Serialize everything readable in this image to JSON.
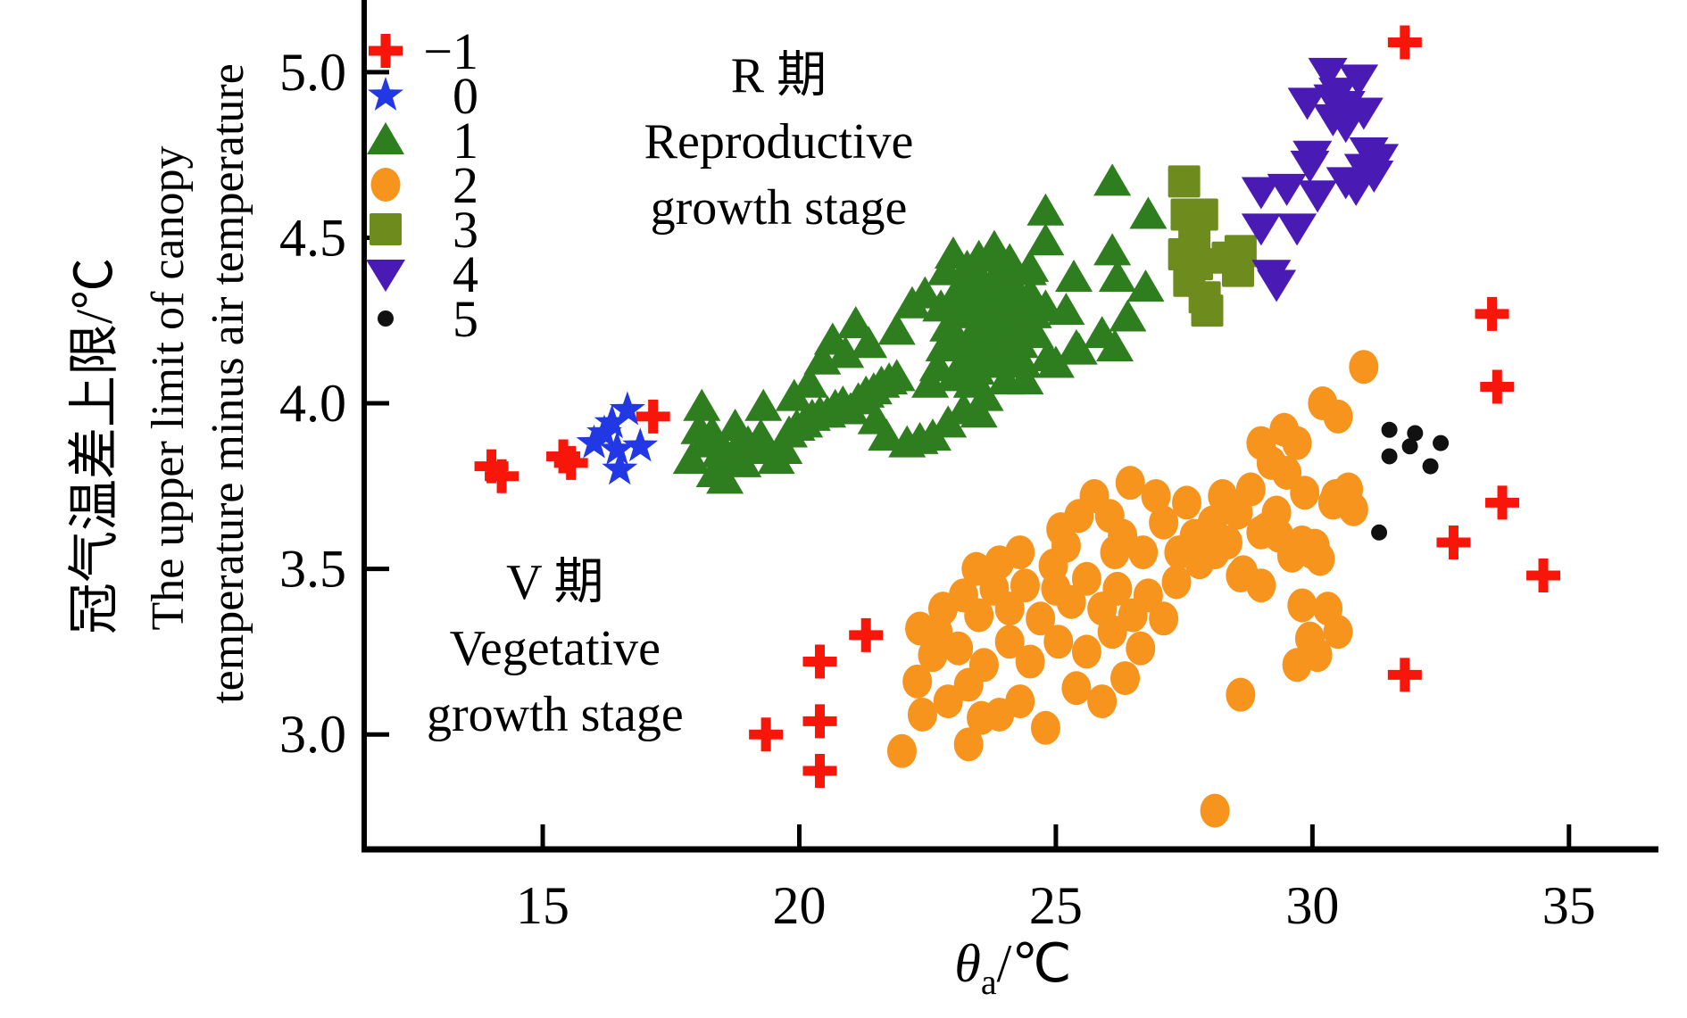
{
  "figure": {
    "background": "#ffffff",
    "text_color": "#000000"
  },
  "chart_data": {
    "type": "scatter",
    "title": "",
    "xlabel": {
      "symbol": "θ",
      "subscript": "a",
      "unit": "/℃"
    },
    "ylabel_lines": [
      "冠气温差上限/℃",
      "The upper limit of canopy",
      "temperature minus air temperature"
    ],
    "xlim": [
      11.52,
      37.3
    ],
    "ylim": [
      2.653,
      5.218
    ],
    "xticks": [
      15,
      20,
      25,
      30,
      35
    ],
    "xtick_labels": [
      "15",
      "20",
      "25",
      "30",
      "35"
    ],
    "yticks": [
      3.0,
      3.5,
      4.0,
      4.5,
      5.0
    ],
    "ytick_labels": [
      "3.0",
      "3.5",
      "4.0",
      "4.5",
      "5.0"
    ],
    "grid": false,
    "legend_position": "upper-left-inside",
    "annotations": [
      {
        "name": "reproductive-stage-label",
        "lines": [
          "R 期",
          "Reproductive",
          "growth stage"
        ],
        "x": 19.6,
        "y": 4.94
      },
      {
        "name": "vegetative-stage-label",
        "lines": [
          "V 期",
          "Vegetative",
          "growth stage"
        ],
        "x": 15.24,
        "y": 3.41
      }
    ],
    "series": [
      {
        "label": "−1",
        "marker": "plus",
        "color": "#f8160b",
        "points": [
          [
            14.0,
            3.81
          ],
          [
            14.2,
            3.78
          ],
          [
            15.4,
            3.84
          ],
          [
            15.55,
            3.82
          ],
          [
            17.15,
            3.96
          ],
          [
            19.35,
            3.0
          ],
          [
            20.4,
            3.22
          ],
          [
            20.4,
            3.04
          ],
          [
            20.4,
            2.89
          ],
          [
            21.3,
            3.3
          ],
          [
            31.8,
            5.09
          ],
          [
            33.5,
            4.27
          ],
          [
            33.6,
            4.05
          ],
          [
            33.7,
            3.7
          ],
          [
            32.75,
            3.58
          ],
          [
            34.5,
            3.48
          ],
          [
            31.8,
            3.18
          ]
        ]
      },
      {
        "label": "0",
        "marker": "star",
        "color": "#2238e4",
        "points": [
          [
            16.0,
            3.88
          ],
          [
            16.2,
            3.91
          ],
          [
            16.35,
            3.94
          ],
          [
            16.65,
            3.98
          ],
          [
            16.45,
            3.86
          ],
          [
            16.5,
            3.8
          ],
          [
            16.9,
            3.87
          ]
        ]
      },
      {
        "label": "1",
        "marker": "triangle",
        "color": "#2e7d1e",
        "points": [
          [
            17.9,
            3.83
          ],
          [
            18.05,
            3.92
          ],
          [
            18.1,
            3.99
          ],
          [
            18.15,
            3.88
          ],
          [
            18.3,
            3.91
          ],
          [
            18.35,
            3.79
          ],
          [
            18.45,
            3.85
          ],
          [
            18.55,
            3.77
          ],
          [
            18.6,
            3.84
          ],
          [
            18.75,
            3.93
          ],
          [
            18.8,
            3.87
          ],
          [
            18.9,
            3.82
          ],
          [
            19.0,
            3.88
          ],
          [
            19.15,
            3.86
          ],
          [
            19.3,
            3.99
          ],
          [
            19.25,
            3.9
          ],
          [
            19.4,
            3.86
          ],
          [
            19.55,
            3.83
          ],
          [
            19.7,
            3.86
          ],
          [
            19.8,
            3.91
          ],
          [
            19.95,
            3.93
          ],
          [
            20.1,
            3.94
          ],
          [
            20.25,
            3.96
          ],
          [
            20.4,
            3.97
          ],
          [
            20.55,
            3.97
          ],
          [
            20.7,
            3.99
          ],
          [
            20.85,
            4.0
          ],
          [
            21.0,
            3.98
          ],
          [
            21.15,
            4.01
          ],
          [
            21.3,
            4.03
          ],
          [
            21.45,
            4.04
          ],
          [
            21.6,
            4.06
          ],
          [
            21.75,
            4.07
          ],
          [
            21.9,
            4.08
          ],
          [
            21.7,
            3.9
          ],
          [
            22.1,
            3.88
          ],
          [
            22.35,
            3.89
          ],
          [
            22.6,
            3.9
          ],
          [
            20.45,
            4.13
          ],
          [
            20.65,
            4.19
          ],
          [
            21.1,
            4.24
          ],
          [
            20.9,
            4.15
          ],
          [
            21.35,
            4.18
          ],
          [
            21.9,
            4.22
          ],
          [
            22.2,
            4.3
          ],
          [
            22.45,
            4.33
          ],
          [
            22.55,
            4.06
          ],
          [
            22.7,
            4.11
          ],
          [
            22.82,
            4.17
          ],
          [
            22.9,
            4.23
          ],
          [
            22.76,
            4.29
          ],
          [
            22.86,
            4.4
          ],
          [
            23.0,
            4.45
          ],
          [
            23.05,
            4.33
          ],
          [
            23.12,
            4.27
          ],
          [
            23.1,
            4.19
          ],
          [
            23.2,
            4.13
          ],
          [
            23.27,
            4.41
          ],
          [
            23.3,
            4.35
          ],
          [
            23.33,
            4.28
          ],
          [
            23.42,
            4.22
          ],
          [
            23.44,
            4.15
          ],
          [
            23.5,
            4.44
          ],
          [
            23.56,
            4.37
          ],
          [
            23.6,
            4.31
          ],
          [
            23.66,
            4.25
          ],
          [
            23.7,
            4.19
          ],
          [
            23.76,
            4.13
          ],
          [
            23.82,
            4.46
          ],
          [
            23.86,
            4.39
          ],
          [
            23.9,
            4.32
          ],
          [
            23.96,
            4.26
          ],
          [
            24.0,
            4.2
          ],
          [
            24.06,
            4.14
          ],
          [
            24.1,
            4.43
          ],
          [
            24.16,
            4.36
          ],
          [
            24.2,
            4.3
          ],
          [
            24.26,
            4.24
          ],
          [
            24.3,
            4.18
          ],
          [
            24.36,
            4.12
          ],
          [
            24.46,
            4.4
          ],
          [
            24.5,
            4.33
          ],
          [
            24.56,
            4.27
          ],
          [
            24.6,
            4.21
          ],
          [
            23.02,
            4.08
          ],
          [
            23.36,
            4.06
          ],
          [
            23.62,
            4.02
          ],
          [
            24.02,
            4.07
          ],
          [
            24.8,
            4.58
          ],
          [
            23.8,
            4.47
          ],
          [
            24.8,
            4.49
          ],
          [
            24.5,
            4.41
          ],
          [
            25.35,
            4.38
          ],
          [
            26.1,
            4.46
          ],
          [
            26.2,
            4.38
          ],
          [
            26.4,
            4.26
          ],
          [
            25.9,
            4.21
          ],
          [
            25.4,
            4.17
          ],
          [
            25.0,
            4.12
          ],
          [
            24.8,
            4.29
          ],
          [
            25.2,
            4.28
          ],
          [
            26.75,
            4.35
          ],
          [
            26.1,
            4.67
          ],
          [
            26.8,
            4.57
          ],
          [
            24.85,
            4.14
          ],
          [
            25.45,
            4.16
          ],
          [
            26.15,
            4.17
          ],
          [
            23.45,
            4.1
          ],
          [
            23.95,
            4.12
          ],
          [
            24.4,
            4.07
          ],
          [
            22.9,
            3.94
          ],
          [
            23.2,
            3.98
          ],
          [
            23.5,
            3.97
          ],
          [
            21.5,
            3.95
          ],
          [
            20.2,
            4.06
          ],
          [
            19.9,
            4.02
          ]
        ]
      },
      {
        "label": "2",
        "marker": "circle",
        "color": "#f7941e",
        "points": [
          [
            22.0,
            2.95
          ],
          [
            22.3,
            3.16
          ],
          [
            22.35,
            3.32
          ],
          [
            22.8,
            3.38
          ],
          [
            22.4,
            3.06
          ],
          [
            22.6,
            3.24
          ],
          [
            22.9,
            3.1
          ],
          [
            23.1,
            3.26
          ],
          [
            23.3,
            3.15
          ],
          [
            22.7,
            3.31
          ],
          [
            23.3,
            2.97
          ],
          [
            23.55,
            3.05
          ],
          [
            23.9,
            3.06
          ],
          [
            24.3,
            3.1
          ],
          [
            24.8,
            3.02
          ],
          [
            25.4,
            3.14
          ],
          [
            25.9,
            3.1
          ],
          [
            26.35,
            3.17
          ],
          [
            24.5,
            3.22
          ],
          [
            25.05,
            3.28
          ],
          [
            25.6,
            3.25
          ],
          [
            26.1,
            3.31
          ],
          [
            23.6,
            3.21
          ],
          [
            24.1,
            3.28
          ],
          [
            26.65,
            3.26
          ],
          [
            28.1,
            2.77
          ],
          [
            23.2,
            3.42
          ],
          [
            23.5,
            3.36
          ],
          [
            23.8,
            3.44
          ],
          [
            24.1,
            3.38
          ],
          [
            24.4,
            3.45
          ],
          [
            24.7,
            3.35
          ],
          [
            25.0,
            3.44
          ],
          [
            25.3,
            3.4
          ],
          [
            25.6,
            3.47
          ],
          [
            25.9,
            3.38
          ],
          [
            26.2,
            3.44
          ],
          [
            26.5,
            3.36
          ],
          [
            26.8,
            3.42
          ],
          [
            27.1,
            3.35
          ],
          [
            27.35,
            3.46
          ],
          [
            24.95,
            3.51
          ],
          [
            25.2,
            3.57
          ],
          [
            24.3,
            3.55
          ],
          [
            23.9,
            3.52
          ],
          [
            23.45,
            3.5
          ],
          [
            25.1,
            3.62
          ],
          [
            25.45,
            3.66
          ],
          [
            25.75,
            3.72
          ],
          [
            26.05,
            3.66
          ],
          [
            26.3,
            3.6
          ],
          [
            26.45,
            3.76
          ],
          [
            26.95,
            3.72
          ],
          [
            27.1,
            3.64
          ],
          [
            27.4,
            3.55
          ],
          [
            27.7,
            3.6
          ],
          [
            28.05,
            3.64
          ],
          [
            28.25,
            3.72
          ],
          [
            28.55,
            3.67
          ],
          [
            28.8,
            3.74
          ],
          [
            28.1,
            3.55
          ],
          [
            28.6,
            3.48
          ],
          [
            29.0,
            3.61
          ],
          [
            29.3,
            3.67
          ],
          [
            29.6,
            3.54
          ],
          [
            26.7,
            3.55
          ],
          [
            27.8,
            3.52
          ],
          [
            28.35,
            3.58
          ],
          [
            27.55,
            3.7
          ],
          [
            26.15,
            3.55
          ],
          [
            29.0,
            3.88
          ],
          [
            29.2,
            3.82
          ],
          [
            29.5,
            3.79
          ],
          [
            29.7,
            3.88
          ],
          [
            29.85,
            3.73
          ],
          [
            30.05,
            3.57
          ],
          [
            30.2,
            4.0
          ],
          [
            30.5,
            3.96
          ],
          [
            30.45,
            3.72
          ],
          [
            30.7,
            3.74
          ],
          [
            30.8,
            3.68
          ],
          [
            31.0,
            4.11
          ],
          [
            30.4,
            3.7
          ],
          [
            29.45,
            3.92
          ],
          [
            29.1,
            3.62
          ],
          [
            29.35,
            3.6
          ],
          [
            29.8,
            3.58
          ],
          [
            30.0,
            3.55
          ],
          [
            30.15,
            3.53
          ],
          [
            28.65,
            3.49
          ],
          [
            29.0,
            3.45
          ],
          [
            29.8,
            3.39
          ],
          [
            30.3,
            3.38
          ],
          [
            30.5,
            3.31
          ],
          [
            29.95,
            3.29
          ],
          [
            30.1,
            3.24
          ],
          [
            29.7,
            3.21
          ],
          [
            28.6,
            3.12
          ]
        ]
      },
      {
        "label": "3",
        "marker": "square",
        "color": "#6e8b1e",
        "points": [
          [
            27.5,
            4.67
          ],
          [
            27.55,
            4.57
          ],
          [
            27.85,
            4.57
          ],
          [
            27.7,
            4.5
          ],
          [
            27.5,
            4.45
          ],
          [
            27.75,
            4.42
          ],
          [
            27.6,
            4.37
          ],
          [
            27.9,
            4.32
          ],
          [
            28.35,
            4.44
          ],
          [
            28.6,
            4.46
          ],
          [
            28.55,
            4.4
          ],
          [
            27.95,
            4.28
          ]
        ]
      },
      {
        "label": "4",
        "marker": "triangle-down",
        "color": "#4a1ab5",
        "points": [
          [
            30.3,
            5.0
          ],
          [
            30.9,
            4.98
          ],
          [
            30.5,
            4.94
          ],
          [
            29.9,
            4.91
          ],
          [
            30.4,
            4.92
          ],
          [
            30.65,
            4.9
          ],
          [
            31.0,
            4.88
          ],
          [
            30.4,
            4.86
          ],
          [
            30.65,
            4.84
          ],
          [
            30.0,
            4.75
          ],
          [
            29.95,
            4.72
          ],
          [
            31.1,
            4.76
          ],
          [
            31.3,
            4.74
          ],
          [
            31.0,
            4.71
          ],
          [
            31.2,
            4.69
          ],
          [
            30.65,
            4.67
          ],
          [
            30.85,
            4.65
          ],
          [
            29.0,
            4.64
          ],
          [
            29.5,
            4.65
          ],
          [
            30.1,
            4.63
          ],
          [
            29.0,
            4.53
          ],
          [
            29.7,
            4.53
          ],
          [
            29.2,
            4.39
          ],
          [
            29.3,
            4.36
          ]
        ]
      },
      {
        "label": "5",
        "marker": "dot",
        "color": "#111111",
        "points": [
          [
            31.5,
            3.92
          ],
          [
            32.0,
            3.91
          ],
          [
            31.9,
            3.87
          ],
          [
            31.5,
            3.84
          ],
          [
            32.5,
            3.88
          ],
          [
            32.3,
            3.81
          ],
          [
            31.3,
            3.61
          ]
        ]
      }
    ]
  }
}
